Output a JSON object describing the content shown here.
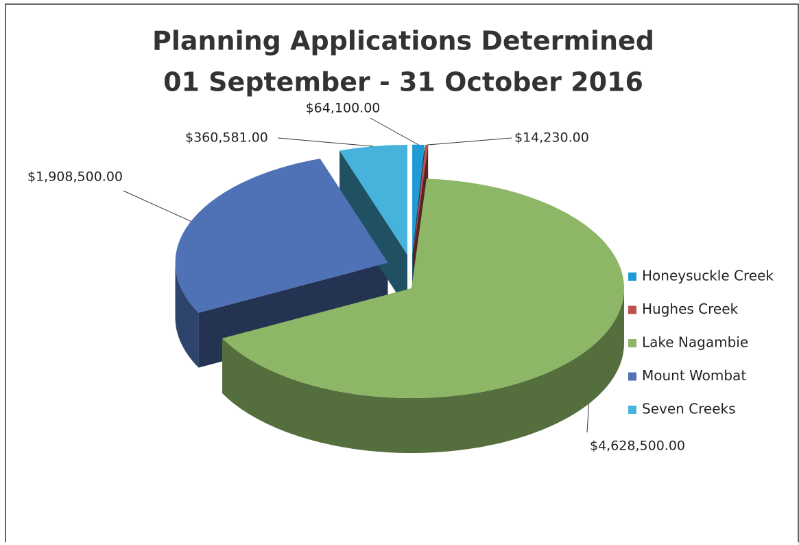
{
  "chart_data": {
    "type": "pie",
    "title": "Planning Applications Determined",
    "subtitle": "01 September - 31 October 2016",
    "categories": [
      "Honeysuckle Creek",
      "Hughes Creek",
      "Lake Nagambie",
      "Mount Wombat",
      "Seven Creeks"
    ],
    "values": [
      64100,
      14230,
      4628500,
      1908500,
      360581
    ],
    "value_labels": [
      "$64,100.00",
      "$14,230.00",
      "$4,628,500.00",
      "$1,908,500.00",
      "$360,581.00"
    ],
    "colors": [
      "#1f9ad6",
      "#c0504d",
      "#8db766",
      "#4f72b6",
      "#46b3dc"
    ],
    "legend": "right"
  }
}
